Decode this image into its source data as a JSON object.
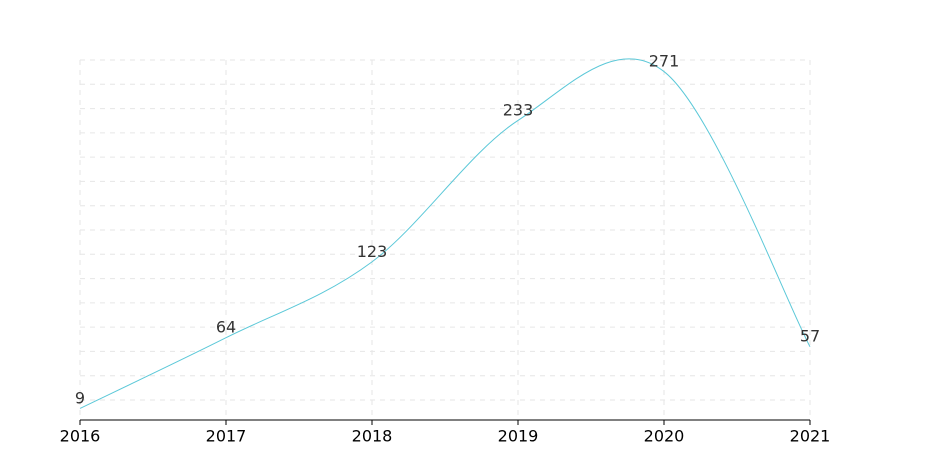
{
  "chart_data": {
    "type": "line",
    "smooth": true,
    "categories": [
      "2016",
      "2017",
      "2018",
      "2019",
      "2020",
      "2021"
    ],
    "series": [
      {
        "values": [
          9,
          64,
          123,
          233,
          271,
          57
        ],
        "color": "#5bc8d8"
      }
    ],
    "ylim": [
      0,
      280
    ],
    "grid": true,
    "grid_color": "#e6e6e6",
    "axis_color": "#000000",
    "label_color": "#333333"
  }
}
